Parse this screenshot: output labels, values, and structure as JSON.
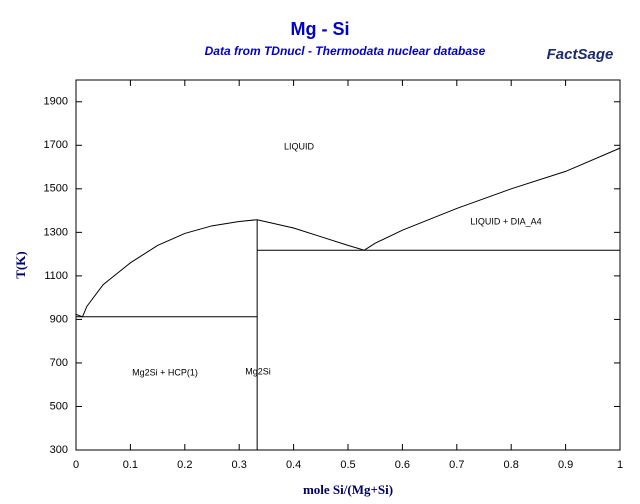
{
  "chart_data": {
    "type": "line",
    "title": "Mg - Si",
    "subtitle": "Data from TDnucl - Thermodata nuclear database",
    "logo": "FactSage",
    "xlabel": "mole Si/(Mg+Si)",
    "ylabel": "T(K)",
    "xlim": [
      0,
      1
    ],
    "ylim": [
      300,
      2000
    ],
    "xticks": [
      0,
      0.1,
      0.2,
      0.3,
      0.4,
      0.5,
      0.6,
      0.7,
      0.8,
      0.9,
      1
    ],
    "yticks": [
      300,
      500,
      700,
      900,
      1100,
      1300,
      1500,
      1700,
      1900
    ],
    "annotations": [
      "LIQUID",
      "LIQUID + DIA_A4",
      "Mg2Si + HCP(1)",
      "Mg2Si"
    ],
    "series": [
      {
        "color": "#000000",
        "x": [
          0,
          0.012,
          0.02,
          0.05,
          0.1,
          0.15,
          0.2,
          0.25,
          0.3,
          0.333
        ],
        "values": [
          923,
          912,
          960,
          1060,
          1160,
          1240,
          1295,
          1330,
          1350,
          1358
        ]
      },
      {
        "color": "#000000",
        "x": [
          0.333,
          0.4,
          0.45,
          0.5,
          0.53,
          0.55,
          0.6,
          0.7,
          0.8,
          0.9,
          1
        ],
        "values": [
          1358,
          1320,
          1280,
          1240,
          1218,
          1250,
          1310,
          1410,
          1500,
          1580,
          1687
        ]
      },
      {
        "color": "#000000",
        "x": [
          0,
          0.333
        ],
        "values": [
          912,
          912
        ]
      },
      {
        "color": "#000000",
        "x": [
          0.333,
          1
        ],
        "values": [
          1218,
          1218
        ]
      },
      {
        "color": "#000000",
        "x": [
          0.333,
          0.333
        ],
        "values": [
          300,
          1358
        ]
      }
    ]
  }
}
